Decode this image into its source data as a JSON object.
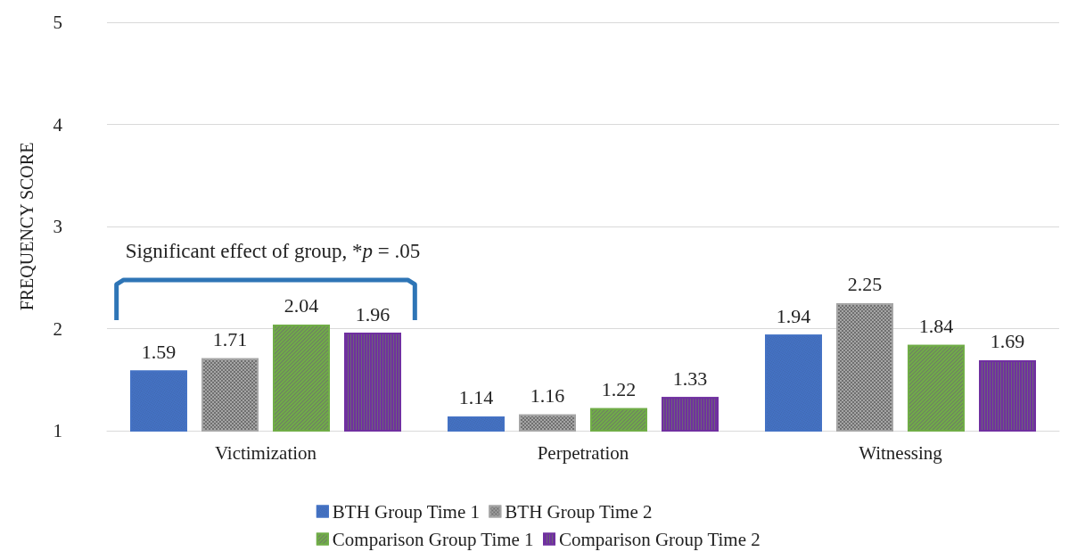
{
  "chart_data": {
    "type": "bar",
    "ylabel": "FREQUENCY SCORE",
    "categories": [
      "Victimization",
      "Perpetration",
      "Witnessing"
    ],
    "series": [
      {
        "name": "BTH Group Time 1",
        "color": "#4472c4",
        "values": [
          1.59,
          1.14,
          1.94
        ]
      },
      {
        "name": "BTH Group Time 2",
        "color": "#a5a5a5",
        "values": [
          1.71,
          1.16,
          2.25
        ]
      },
      {
        "name": "Comparison Group Time 1",
        "color": "#70ad47",
        "values": [
          2.04,
          1.22,
          1.84
        ]
      },
      {
        "name": "Comparison Group Time 2",
        "color": "#7030a0",
        "values": [
          1.96,
          1.33,
          1.69
        ]
      }
    ],
    "ylim": [
      1,
      5
    ],
    "yticks": [
      1,
      2,
      3,
      4,
      5
    ],
    "grid": "y",
    "legend": "bottom",
    "data_labels": true,
    "annotations": [
      "Significant effect of group, *p = .05"
    ]
  }
}
